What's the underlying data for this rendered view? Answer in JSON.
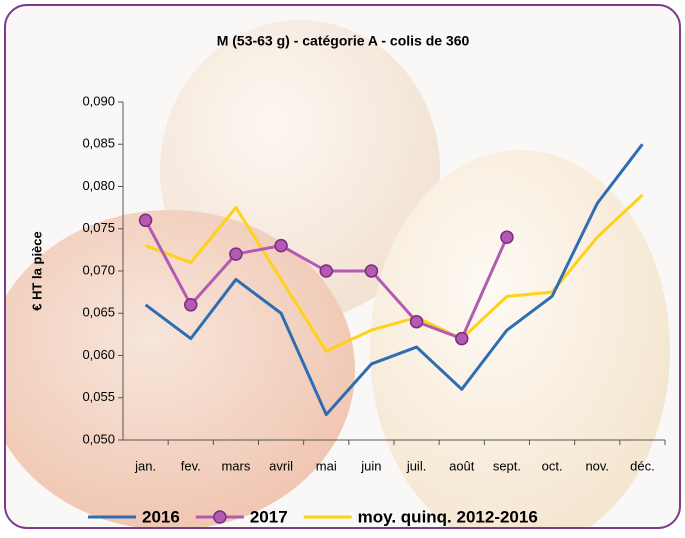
{
  "chart_data": {
    "type": "line",
    "title": "M (53-63 g) - catégorie A - colis de 360",
    "y_label": "€ HT la pièce",
    "categories": [
      "jan.",
      "fev.",
      "mars",
      "avril",
      "mai",
      "juin",
      "juil.",
      "août",
      "sept.",
      "oct.",
      "nov.",
      "déc."
    ],
    "series": [
      {
        "name": "2016",
        "color": "#2e6db4",
        "values": [
          0.066,
          0.062,
          0.069,
          0.065,
          0.053,
          0.059,
          0.061,
          0.056,
          0.063,
          0.067,
          0.078,
          0.085
        ]
      },
      {
        "name": "2017",
        "color": "#b35bb3",
        "marker": true,
        "values": [
          0.076,
          0.066,
          0.072,
          0.073,
          0.07,
          0.07,
          0.064,
          0.062,
          0.074,
          null,
          null,
          null
        ]
      },
      {
        "name": "moy. quinq. 2012-2016",
        "color": "#ffd21a",
        "values": [
          0.073,
          0.071,
          0.0775,
          0.069,
          0.0605,
          0.063,
          0.0645,
          0.062,
          0.067,
          0.0675,
          0.074,
          0.079
        ]
      }
    ],
    "ylim": [
      0.05,
      0.09
    ],
    "yticks": [
      {
        "value": 0.05,
        "label": "0,050"
      },
      {
        "value": 0.055,
        "label": "0,055"
      },
      {
        "value": 0.06,
        "label": "0,060"
      },
      {
        "value": 0.065,
        "label": "0,065"
      },
      {
        "value": 0.07,
        "label": "0,070"
      },
      {
        "value": 0.075,
        "label": "0,075"
      },
      {
        "value": 0.08,
        "label": "0,080"
      },
      {
        "value": 0.085,
        "label": "0,085"
      },
      {
        "value": 0.09,
        "label": "0,090"
      }
    ]
  }
}
